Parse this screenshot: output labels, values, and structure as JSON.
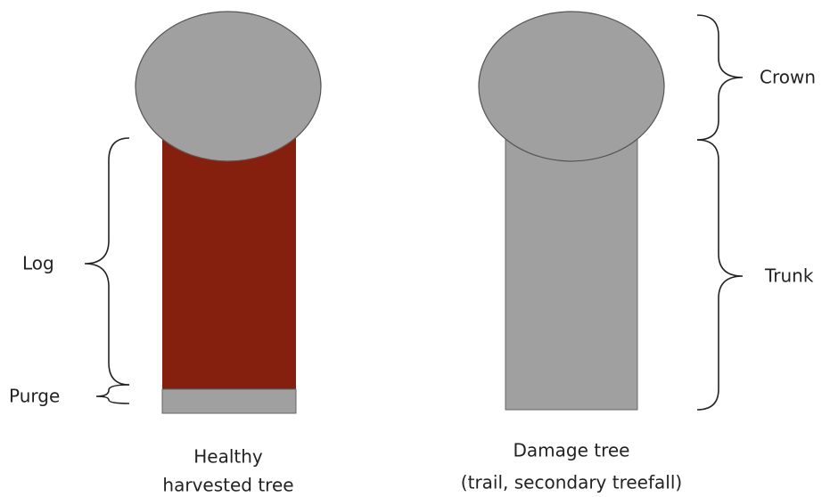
{
  "labels": {
    "log": "Log",
    "purge": "Purge",
    "crown": "Crown",
    "trunk": "Trunk"
  },
  "trees": [
    {
      "caption": [
        "Healthy",
        "harvested tree"
      ]
    },
    {
      "caption": [
        "Damage tree",
        "(trail, secondary treefall)"
      ]
    }
  ]
}
